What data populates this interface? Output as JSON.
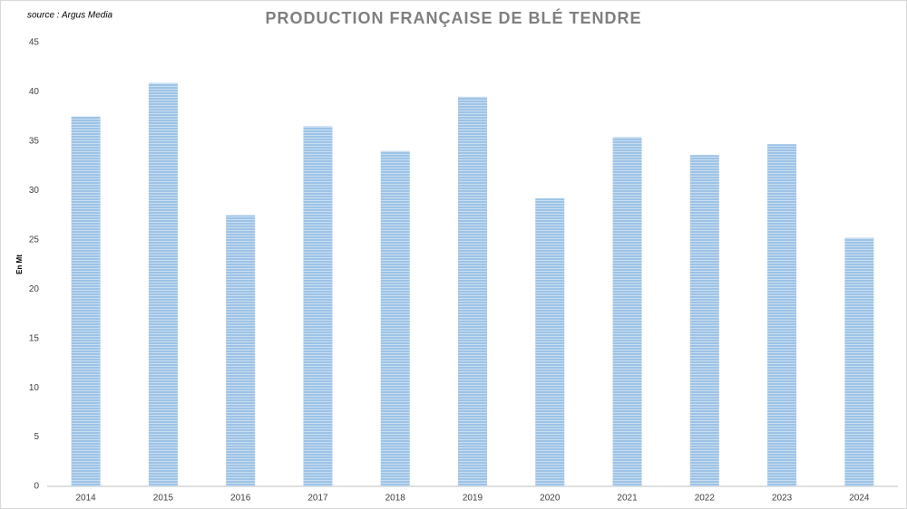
{
  "chart_data": {
    "type": "bar",
    "title": "PRODUCTION FRANÇAISE DE BLÉ TENDRE",
    "source": "source : Argus Media",
    "y_label": "En Mt",
    "categories": [
      "2014",
      "2015",
      "2016",
      "2017",
      "2018",
      "2019",
      "2020",
      "2021",
      "2022",
      "2023",
      "2024"
    ],
    "values": [
      37.5,
      40.9,
      27.5,
      36.5,
      34.0,
      39.5,
      29.2,
      35.4,
      33.6,
      34.7,
      25.2
    ],
    "color": "#9dc3e6",
    "ylim": [
      0,
      45
    ],
    "yticks": [
      0,
      5,
      10,
      15,
      20,
      25,
      30,
      35,
      40,
      45
    ],
    "grid": false
  }
}
